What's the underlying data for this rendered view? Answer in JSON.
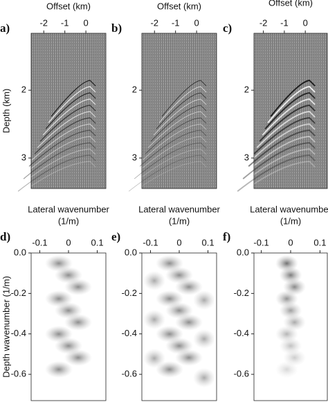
{
  "chart_data": [
    {
      "type": "image",
      "label": "a)",
      "xlabel": [
        "Offset (km)"
      ],
      "ylabel": "Depth (km)",
      "xlim": [
        -2.6,
        0.95
      ],
      "ylim": [
        1.16,
        3.45
      ],
      "xticks": [
        -2,
        -1,
        0
      ],
      "yticks": [
        2,
        3
      ]
    },
    {
      "type": "image",
      "label": "b)",
      "xlabel": [
        "Offset (km)"
      ],
      "xlim": [
        -2.6,
        0.95
      ],
      "ylim": [
        1.16,
        3.45
      ],
      "xticks": [
        -2,
        -1,
        0
      ],
      "yticks": [
        2,
        3
      ]
    },
    {
      "type": "image",
      "label": "c)",
      "xlabel": [
        "Offset (km)"
      ],
      "xlim": [
        -2.45,
        1.05
      ],
      "ylim": [
        1.16,
        3.45
      ],
      "xticks": [
        -2,
        -1,
        0
      ],
      "yticks": [
        2,
        3
      ]
    },
    {
      "type": "spectrum",
      "label": "d)",
      "xlabel": [
        "Lateral wavenumber",
        "(1/m)"
      ],
      "ylabel": "Depth wavenumber (1/m)",
      "xlim": [
        -0.13,
        0.13
      ],
      "ylim": [
        0,
        -0.73
      ],
      "xticks": [
        -0.1,
        0,
        0.1
      ],
      "yticks": [
        {
          "value": 0,
          "label": "0.0"
        },
        -0.2,
        -0.4,
        -0.6
      ]
    },
    {
      "type": "spectrum",
      "label": "e)",
      "xlabel": [
        "Lateral wavenumber",
        "(1/m)"
      ],
      "xlim": [
        -0.13,
        0.13
      ],
      "ylim": [
        0,
        -0.73
      ],
      "xticks": [
        -0.1,
        0,
        0.1
      ],
      "yticks": [
        {
          "value": 0,
          "label": "0.0"
        },
        -0.2,
        -0.4,
        -0.6
      ]
    },
    {
      "type": "spectrum",
      "label": "f)",
      "xlabel": [
        "Lateral wavenumber",
        "(1/m)"
      ],
      "xlim": [
        -0.125,
        0.125
      ],
      "ylim": [
        0,
        -0.73
      ],
      "xticks": [
        -0.1,
        0,
        0.1
      ],
      "yticks": [
        {
          "value": 0,
          "label": "0.0"
        },
        -0.2,
        -0.4,
        -0.6
      ]
    }
  ]
}
